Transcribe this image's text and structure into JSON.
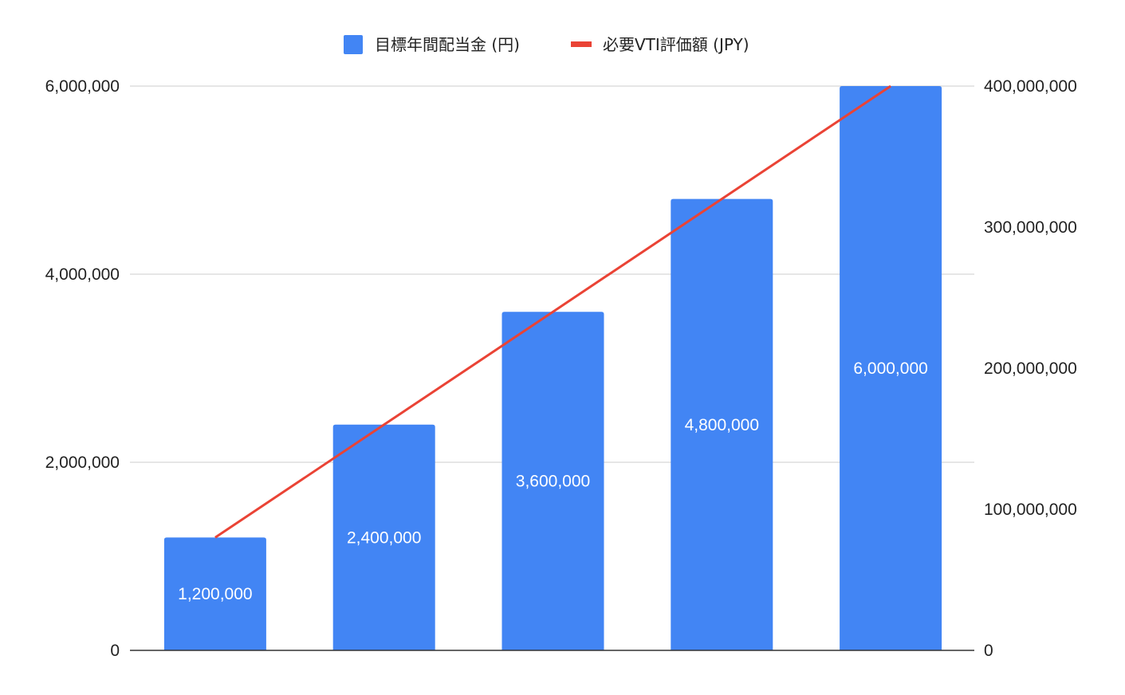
{
  "chart_data": {
    "type": "bar",
    "categories": [
      "",
      "",
      "",
      "",
      ""
    ],
    "series": [
      {
        "name": "目標年間配当金 (円)",
        "chart_type": "bar",
        "axis": "left",
        "color": "#4285f4",
        "values": [
          1200000,
          2400000,
          3600000,
          4800000,
          6000000
        ],
        "data_labels": [
          "1,200,000",
          "2,400,000",
          "3,600,000",
          "4,800,000",
          "6,000,000"
        ]
      },
      {
        "name": "必要VTI評価額 (JPY)",
        "chart_type": "line",
        "axis": "right",
        "color": "#ea4335",
        "values": [
          80000000,
          160000000,
          240000000,
          320000000,
          400000000
        ]
      }
    ],
    "y_left": {
      "range": [
        0,
        6000000
      ],
      "ticks": [
        0,
        2000000,
        4000000,
        6000000
      ],
      "tick_labels": [
        "0",
        "2,000,000",
        "4,000,000",
        "6,000,000"
      ]
    },
    "y_right": {
      "range": [
        0,
        400000000
      ],
      "ticks": [
        0,
        100000000,
        200000000,
        300000000,
        400000000
      ],
      "tick_labels": [
        "0",
        "100,000,000",
        "200,000,000",
        "300,000,000",
        "400,000,000"
      ]
    },
    "title": "",
    "xlabel": "",
    "ylabel": "",
    "grid": true,
    "legend_position": "top-center"
  }
}
